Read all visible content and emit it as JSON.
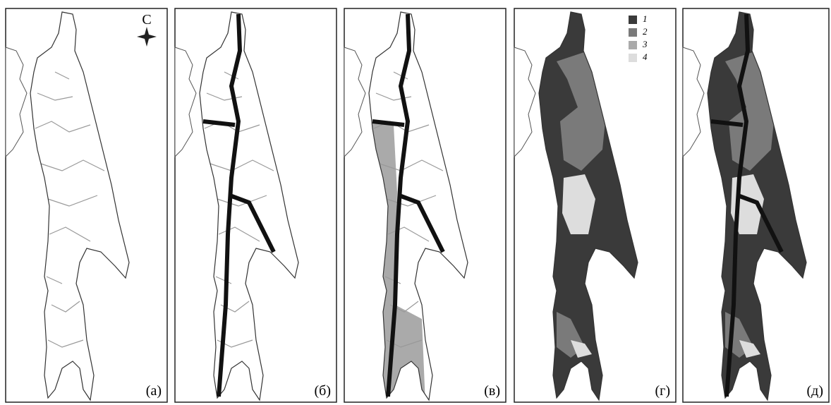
{
  "north_label": "С",
  "panels": [
    {
      "label": "(а)"
    },
    {
      "label": "(б)"
    },
    {
      "label": "(в)"
    },
    {
      "label": "(г)"
    },
    {
      "label": "(д)"
    }
  ],
  "legend": [
    {
      "label": "1",
      "color": "#3a3a3a"
    },
    {
      "label": "2",
      "color": "#7a7a7a"
    },
    {
      "label": "3",
      "color": "#aaaaaa"
    },
    {
      "label": "4",
      "color": "#dddddd"
    }
  ]
}
